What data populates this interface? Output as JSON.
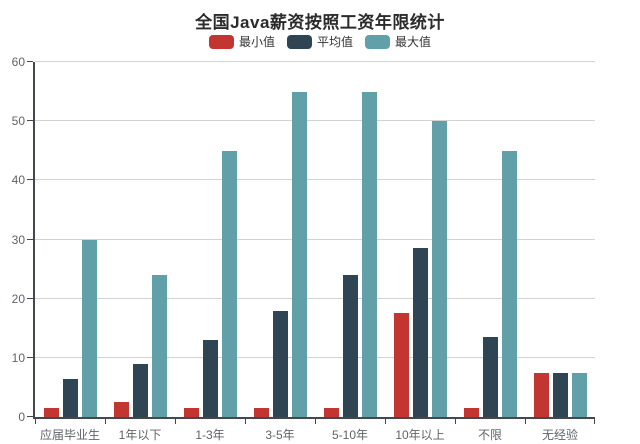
{
  "chart_data": {
    "type": "bar",
    "title": "全国Java薪资按照工资年限统计",
    "categories": [
      "应届毕业生",
      "1年以下",
      "1-3年",
      "3-5年",
      "5-10年",
      "10年以上",
      "不限",
      "无经验"
    ],
    "series": [
      {
        "name": "最小值",
        "color": "#c23531",
        "values": [
          1.5,
          2.5,
          1.5,
          1.5,
          1.5,
          17.5,
          1.5,
          7.5
        ]
      },
      {
        "name": "平均值",
        "color": "#2f4554",
        "values": [
          6.5,
          9,
          13,
          18,
          24,
          28.5,
          13.5,
          7.5
        ]
      },
      {
        "name": "最大值",
        "color": "#61a0a8",
        "values": [
          30,
          24,
          45,
          55,
          55,
          50,
          45,
          7.5
        ]
      }
    ],
    "xlabel": "",
    "ylabel": "",
    "ylim": [
      0,
      60
    ],
    "ytick_step": 10,
    "grid": true,
    "legend_position": "top",
    "axis_color": "#44474d",
    "gridline_color": "#d3d3d3",
    "background_color": "#ffffff"
  }
}
